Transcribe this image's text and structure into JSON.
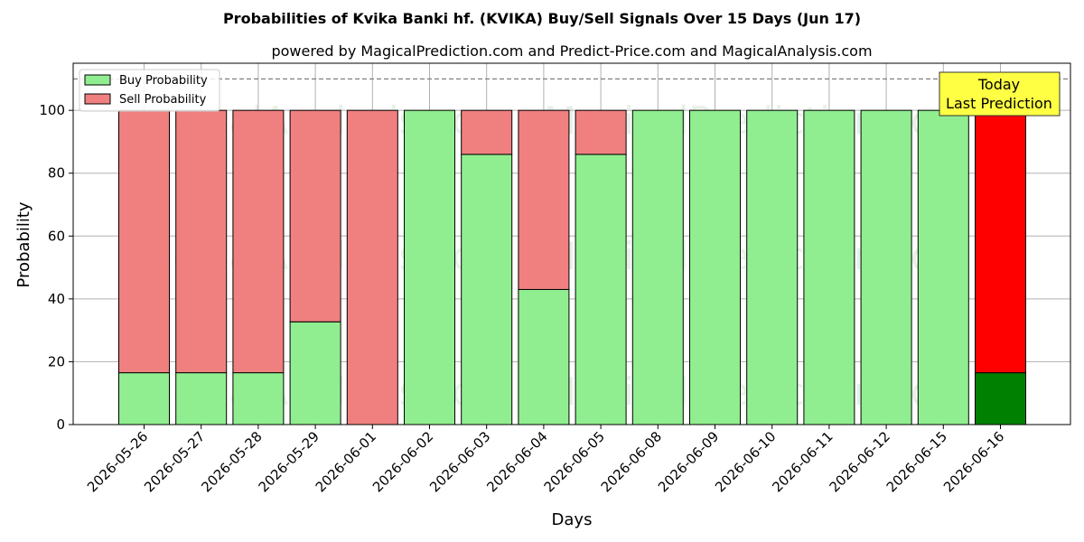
{
  "chart_data": {
    "type": "bar",
    "stacked": true,
    "title": "Probabilities of Kvika Banki hf. (KVIKA) Buy/Sell Signals Over 15 Days (Jun 17)",
    "subtitle": "powered by MagicalPrediction.com and Predict-Price.com and MagicalAnalysis.com",
    "xlabel": "Days",
    "ylabel": "Probability",
    "ylim": [
      0,
      115
    ],
    "yticks": [
      0,
      20,
      40,
      60,
      80,
      100
    ],
    "grid": true,
    "legend_placement": "top-left",
    "reference_line": 110,
    "categories": [
      "2026-05-26",
      "2026-05-27",
      "2026-05-28",
      "2026-05-29",
      "2026-06-01",
      "2026-06-02",
      "2026-06-03",
      "2026-06-04",
      "2026-06-05",
      "2026-06-08",
      "2026-06-09",
      "2026-06-10",
      "2026-06-11",
      "2026-06-12",
      "2026-06-15",
      "2026-06-16"
    ],
    "series": [
      {
        "name": "Buy Probability",
        "color": "#90ee90",
        "values": [
          16.5,
          16.5,
          16.5,
          32.7,
          0,
          100,
          86,
          43,
          86,
          100,
          100,
          100,
          100,
          100,
          100,
          16.5
        ]
      },
      {
        "name": "Sell Probability",
        "color": "#f08080",
        "values": [
          83.5,
          83.5,
          83.5,
          67.3,
          100,
          0,
          14,
          57,
          14,
          0,
          0,
          0,
          0,
          0,
          0,
          83.5
        ]
      }
    ],
    "highlight": {
      "index": 15,
      "buy_color": "#008000",
      "sell_color": "#ff0000"
    },
    "annotation": {
      "lines": [
        "Today",
        "Last Prediction"
      ],
      "bg_color": "#ffff44"
    },
    "watermarks": [
      "MagicalAnalysis.com",
      "MagicalPrediction.com"
    ]
  }
}
